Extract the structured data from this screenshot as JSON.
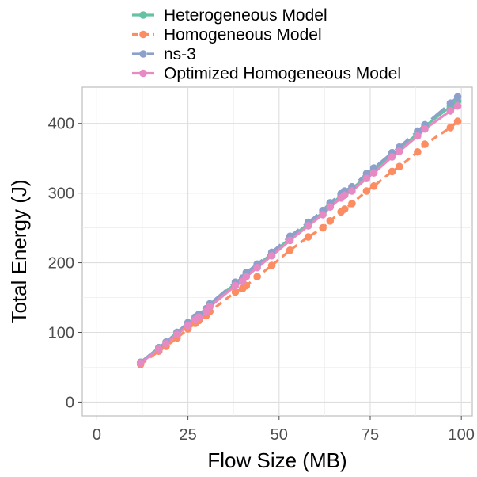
{
  "chart_data": {
    "type": "line",
    "xlabel": "Flow Size (MB)",
    "ylabel": "Total Energy (J)",
    "xlim": [
      -4,
      103
    ],
    "ylim": [
      -20,
      452
    ],
    "xticks": [
      0,
      25,
      50,
      75,
      100
    ],
    "yticks": [
      0,
      100,
      200,
      300,
      400
    ],
    "grid": true,
    "legend_position": "top",
    "series": [
      {
        "name": "Heterogeneous Model",
        "color": "#66c2a5",
        "dash": "solid",
        "x": [
          12,
          17,
          19,
          22,
          25,
          27,
          28,
          30,
          31,
          38,
          40,
          41,
          44,
          48,
          53,
          58,
          62,
          64,
          67,
          68,
          70,
          74,
          76,
          81,
          83,
          88,
          90,
          97,
          99
        ],
        "y": [
          57,
          78,
          86,
          100,
          112,
          120,
          124,
          133,
          140,
          170,
          176,
          184,
          196,
          213,
          235,
          256,
          272,
          283,
          296,
          300,
          306,
          324,
          332,
          354,
          364,
          385,
          396,
          424,
          432
        ]
      },
      {
        "name": "Homogeneous Model",
        "color": "#fc8d62",
        "dash": "dashed",
        "x": [
          12,
          17,
          19,
          22,
          25,
          27,
          28,
          30,
          31,
          38,
          40,
          41,
          44,
          48,
          53,
          58,
          62,
          64,
          67,
          68,
          70,
          74,
          76,
          81,
          83,
          88,
          90,
          97,
          99
        ],
        "y": [
          54,
          73,
          80,
          92,
          105,
          113,
          117,
          124,
          130,
          158,
          163,
          167,
          180,
          196,
          218,
          237,
          250,
          260,
          273,
          277,
          285,
          303,
          310,
          331,
          338,
          359,
          370,
          394,
          403
        ]
      },
      {
        "name": "ns-3",
        "color": "#8da0cb",
        "dash": "longdash",
        "x": [
          12,
          17,
          19,
          22,
          25,
          27,
          28,
          30,
          31,
          38,
          40,
          41,
          44,
          48,
          53,
          58,
          62,
          64,
          67,
          68,
          70,
          74,
          76,
          81,
          83,
          88,
          90,
          97,
          99
        ],
        "y": [
          57,
          78,
          86,
          100,
          114,
          122,
          126,
          134,
          141,
          172,
          178,
          186,
          198,
          215,
          238,
          258,
          275,
          286,
          299,
          303,
          309,
          328,
          336,
          358,
          366,
          389,
          398,
          429,
          438
        ]
      },
      {
        "name": "Optimized Homogeneous Model",
        "color": "#e78ac3",
        "dash": "solid",
        "x": [
          12,
          17,
          19,
          22,
          25,
          27,
          28,
          30,
          31,
          38,
          40,
          41,
          44,
          48,
          53,
          58,
          62,
          64,
          67,
          68,
          70,
          74,
          76,
          81,
          83,
          88,
          90,
          97,
          99
        ],
        "y": [
          56,
          76,
          84,
          97,
          110,
          118,
          122,
          130,
          137,
          167,
          173,
          180,
          193,
          210,
          232,
          253,
          269,
          280,
          293,
          297,
          303,
          321,
          329,
          352,
          360,
          382,
          392,
          418,
          425
        ]
      }
    ]
  }
}
